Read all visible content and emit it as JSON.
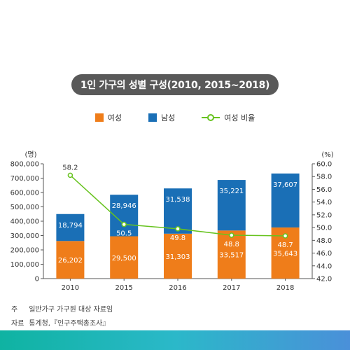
{
  "title": "1인 가구의 성별 구성(2010, 2015~2018)",
  "legend": {
    "female": "여성",
    "male": "남성",
    "ratio": "여성 비율"
  },
  "colors": {
    "female": "#ef7d1a",
    "male": "#1a6fb6",
    "ratio": "#67c31f"
  },
  "notes": {
    "note_key": "주",
    "note_text": "일반가구 가구원 대상 자료임",
    "source_key": "자료",
    "source_text": "통계청,『인구주택총조사』"
  },
  "chart_data": {
    "type": "bar",
    "stacked": true,
    "categories": [
      "2010",
      "2015",
      "2016",
      "2017",
      "2018"
    ],
    "series": [
      {
        "name": "여성",
        "values": [
          26202,
          29500,
          31303,
          33517,
          35643
        ],
        "labels": [
          "26,202",
          "29,500",
          "31,303",
          "33,517",
          "35,643"
        ]
      },
      {
        "name": "남성",
        "values": [
          18794,
          28946,
          31538,
          35221,
          37607
        ],
        "labels": [
          "18,794",
          "28,946",
          "31,538",
          "35,221",
          "37,607"
        ]
      }
    ],
    "line_series": {
      "name": "여성 비율",
      "values": [
        58.2,
        50.5,
        49.8,
        48.8,
        48.7
      ],
      "labels": [
        "58.2",
        "50.5",
        "49.8",
        "48.8",
        "48.7"
      ]
    },
    "bar_scale": 10,
    "ylabel_left": "(명)",
    "ylabel_right": "(%)",
    "ylim_left": [
      0,
      800000
    ],
    "ylim_right": [
      42.0,
      60.0
    ],
    "yticks_left": [
      "0",
      "100,000",
      "200,000",
      "300,000",
      "400,000",
      "500,000",
      "600,000",
      "700,000",
      "800,000"
    ],
    "yticks_right": [
      "42.0",
      "44.0",
      "46.0",
      "48.0",
      "50.0",
      "52.0",
      "54.0",
      "56.0",
      "58.0",
      "60.0"
    ],
    "grid": false
  }
}
